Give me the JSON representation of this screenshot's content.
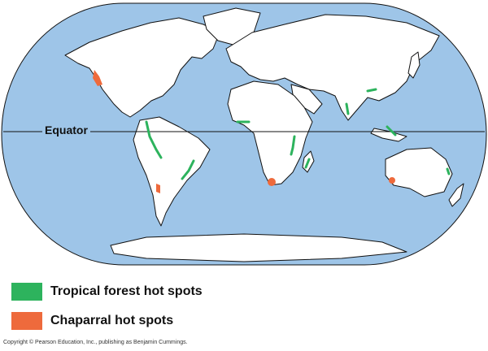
{
  "map": {
    "equator_label": "Equator",
    "ocean_color": "#9ec5e8",
    "land_color": "#ffffff",
    "outline_color": "#111111"
  },
  "legend": [
    {
      "label": "Tropical forest hot spots",
      "color": "#2db35d"
    },
    {
      "label": "Chaparral hot spots",
      "color": "#ee6a3c"
    }
  ],
  "copyright": "Copyright © Pearson Education, Inc., publishing as Benjamin Cummings."
}
